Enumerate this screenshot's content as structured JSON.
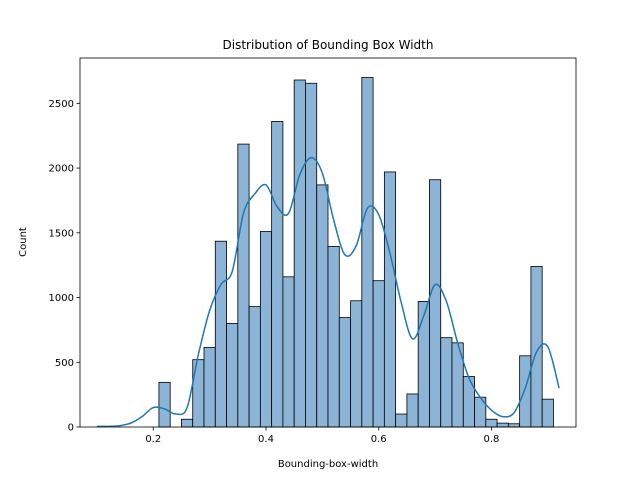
{
  "chart_data": {
    "type": "bar",
    "title": "Distribution of Bounding Box Width",
    "xlabel": "Bounding-box-width",
    "ylabel": "Count",
    "xlim": [
      0.07,
      0.95
    ],
    "ylim": [
      0,
      2850
    ],
    "x_ticks": [
      0.2,
      0.4,
      0.6,
      0.8
    ],
    "x_tick_labels": [
      "0.2",
      "0.4",
      "0.6",
      "0.8"
    ],
    "y_ticks": [
      0,
      500,
      1000,
      1500,
      2000,
      2500
    ],
    "y_tick_labels": [
      "0",
      "500",
      "1000",
      "1500",
      "2000",
      "2500"
    ],
    "grid": false,
    "bar_color": "#8cb4d6",
    "bar_edge_color": "#000000",
    "kde_color": "#1f77b4",
    "bins": [
      {
        "x0": 0.21,
        "x1": 0.23,
        "count": 345
      },
      {
        "x0": 0.23,
        "x1": 0.25,
        "count": 0
      },
      {
        "x0": 0.25,
        "x1": 0.27,
        "count": 60
      },
      {
        "x0": 0.27,
        "x1": 0.29,
        "count": 520
      },
      {
        "x0": 0.29,
        "x1": 0.31,
        "count": 615
      },
      {
        "x0": 0.31,
        "x1": 0.33,
        "count": 1435
      },
      {
        "x0": 0.33,
        "x1": 0.35,
        "count": 800
      },
      {
        "x0": 0.35,
        "x1": 0.37,
        "count": 2185
      },
      {
        "x0": 0.37,
        "x1": 0.39,
        "count": 930
      },
      {
        "x0": 0.39,
        "x1": 0.41,
        "count": 1510
      },
      {
        "x0": 0.41,
        "x1": 0.43,
        "count": 2360
      },
      {
        "x0": 0.43,
        "x1": 0.45,
        "count": 1160
      },
      {
        "x0": 0.45,
        "x1": 0.47,
        "count": 2680
      },
      {
        "x0": 0.47,
        "x1": 0.49,
        "count": 2655
      },
      {
        "x0": 0.49,
        "x1": 0.51,
        "count": 1870
      },
      {
        "x0": 0.51,
        "x1": 0.53,
        "count": 1395
      },
      {
        "x0": 0.53,
        "x1": 0.55,
        "count": 845
      },
      {
        "x0": 0.55,
        "x1": 0.57,
        "count": 975
      },
      {
        "x0": 0.57,
        "x1": 0.59,
        "count": 2700
      },
      {
        "x0": 0.59,
        "x1": 0.61,
        "count": 1130
      },
      {
        "x0": 0.61,
        "x1": 0.63,
        "count": 1970
      },
      {
        "x0": 0.63,
        "x1": 0.65,
        "count": 100
      },
      {
        "x0": 0.65,
        "x1": 0.67,
        "count": 255
      },
      {
        "x0": 0.67,
        "x1": 0.69,
        "count": 970
      },
      {
        "x0": 0.69,
        "x1": 0.71,
        "count": 1910
      },
      {
        "x0": 0.71,
        "x1": 0.73,
        "count": 690
      },
      {
        "x0": 0.73,
        "x1": 0.75,
        "count": 650
      },
      {
        "x0": 0.75,
        "x1": 0.77,
        "count": 390
      },
      {
        "x0": 0.77,
        "x1": 0.79,
        "count": 230
      },
      {
        "x0": 0.79,
        "x1": 0.81,
        "count": 60
      },
      {
        "x0": 0.81,
        "x1": 0.83,
        "count": 30
      },
      {
        "x0": 0.83,
        "x1": 0.85,
        "count": 25
      },
      {
        "x0": 0.85,
        "x1": 0.87,
        "count": 550
      },
      {
        "x0": 0.87,
        "x1": 0.89,
        "count": 1240
      },
      {
        "x0": 0.89,
        "x1": 0.91,
        "count": 215
      }
    ],
    "kde": {
      "x": [
        0.1,
        0.12,
        0.14,
        0.16,
        0.18,
        0.2,
        0.22,
        0.24,
        0.26,
        0.28,
        0.3,
        0.32,
        0.34,
        0.36,
        0.38,
        0.4,
        0.42,
        0.44,
        0.46,
        0.48,
        0.5,
        0.52,
        0.54,
        0.56,
        0.58,
        0.6,
        0.62,
        0.64,
        0.66,
        0.68,
        0.7,
        0.72,
        0.74,
        0.76,
        0.78,
        0.8,
        0.82,
        0.84,
        0.86,
        0.88,
        0.9,
        0.92
      ],
      "y": [
        5,
        5,
        10,
        30,
        80,
        150,
        140,
        100,
        150,
        560,
        900,
        1100,
        1200,
        1650,
        1800,
        1870,
        1700,
        1650,
        1950,
        2080,
        1960,
        1600,
        1330,
        1400,
        1690,
        1640,
        1340,
        960,
        680,
        860,
        1100,
        970,
        650,
        380,
        230,
        130,
        80,
        110,
        300,
        580,
        620,
        300
      ]
    }
  }
}
